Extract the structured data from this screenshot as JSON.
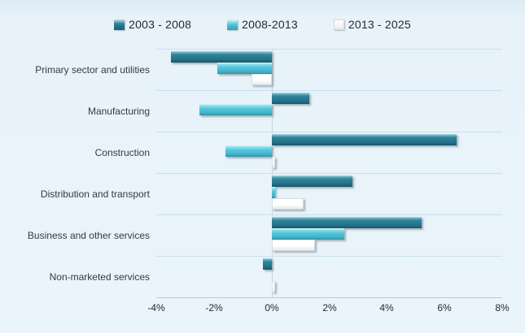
{
  "colors": {
    "background": "#eaf4fb",
    "series_dark_teal": "#24758c",
    "series_cyan": "#54c6db",
    "series_white": "#ffffff",
    "grid_line": "#c7dfee",
    "axis_line": "#aecfe2",
    "text": "#26292b"
  },
  "legend": {
    "items": [
      {
        "label": "2003 - 2008",
        "swatch": "dark-teal-square"
      },
      {
        "label": "2008-2013",
        "swatch": "cyan-square"
      },
      {
        "label": "2013 - 2025",
        "swatch": "white-square"
      }
    ]
  },
  "chart_data": {
    "type": "bar",
    "orientation": "horizontal",
    "title": "",
    "xlabel": "",
    "ylabel": "",
    "xlim": [
      -4,
      8
    ],
    "x_tick_values": [
      -4,
      -2,
      0,
      2,
      4,
      6,
      8
    ],
    "x_tick_labels": [
      "-4%",
      "-2%",
      "0%",
      "2%",
      "4%",
      "6%",
      "8%"
    ],
    "grid": "horizontal-separators",
    "legend_position": "top",
    "categories": [
      "Primary sector and utilities",
      "Manufacturing",
      "Construction",
      "Distribution and transport",
      "Business and other services",
      "Non-marketed services"
    ],
    "series": [
      {
        "name": "2003 - 2008",
        "values": [
          -3.5,
          1.3,
          6.4,
          2.8,
          5.2,
          -0.3
        ]
      },
      {
        "name": "2008-2013",
        "values": [
          -1.9,
          -2.5,
          -1.6,
          0.1,
          2.5,
          0.0
        ]
      },
      {
        "name": "2013 - 2025",
        "values": [
          -0.7,
          0.0,
          0.1,
          1.1,
          1.5,
          0.1
        ]
      }
    ],
    "units": "percent"
  }
}
